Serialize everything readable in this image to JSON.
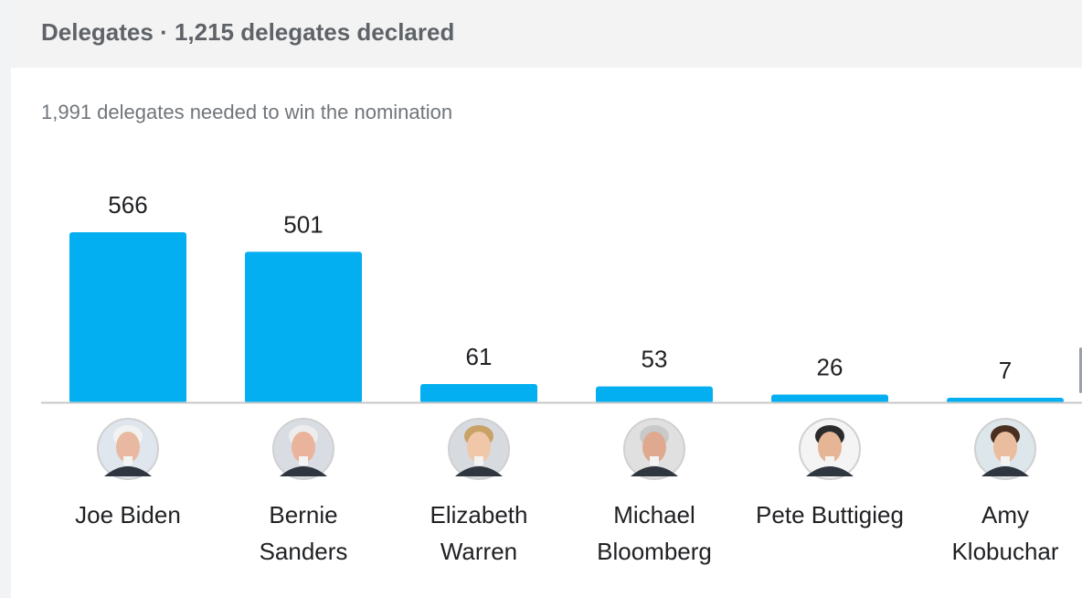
{
  "header": {
    "title": "Delegates · 1,215 delegates declared"
  },
  "subtitle": "1,991 delegates needed to win the nomination",
  "colors": {
    "bar": "#03aff0",
    "baseline": "#c8c8c8"
  },
  "chart_data": {
    "type": "bar",
    "title": "Delegates · 1,215 delegates declared",
    "subtitle": "1,991 delegates needed to win the nomination",
    "categories": [
      "Joe Biden",
      "Bernie Sanders",
      "Elizabeth Warren",
      "Michael Bloomberg",
      "Pete Buttigieg",
      "Amy Klobuchar"
    ],
    "category_lines": [
      [
        "Joe Biden"
      ],
      [
        "Bernie",
        "Sanders"
      ],
      [
        "Elizabeth",
        "Warren"
      ],
      [
        "Michael",
        "Bloomberg"
      ],
      [
        "Pete Buttigieg"
      ],
      [
        "Amy",
        "Klobuchar"
      ]
    ],
    "values": [
      566,
      501,
      61,
      53,
      26,
      7
    ],
    "value_labels": [
      "566",
      "501",
      "61",
      "53",
      "26",
      "7"
    ],
    "xlabel": "",
    "ylabel": "",
    "ylim": [
      0,
      566
    ],
    "grid": false
  }
}
